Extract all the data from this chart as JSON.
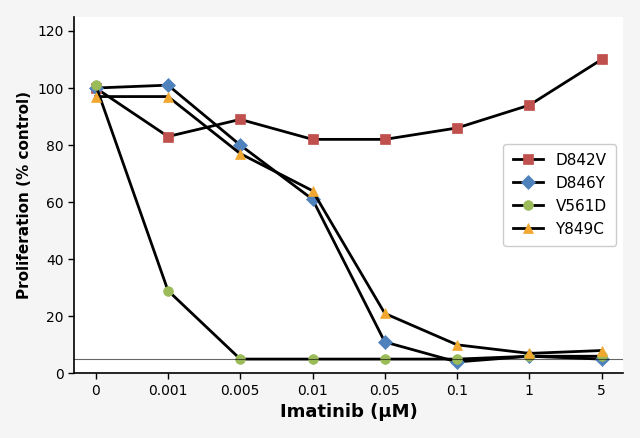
{
  "x_positions": [
    0,
    1,
    2,
    3,
    4,
    5,
    6,
    7
  ],
  "x_tick_labels": [
    "0",
    "0.001",
    "0.005",
    "0.01",
    "0.05",
    "0.1",
    "1",
    "5"
  ],
  "series": {
    "D842V": {
      "y": [
        100,
        83,
        89,
        82,
        82,
        86,
        94,
        110
      ],
      "color": "#c0504d",
      "marker": "s",
      "markersize": 7
    },
    "D846Y": {
      "y": [
        100,
        101,
        80,
        61,
        11,
        4,
        6,
        5
      ],
      "color": "#4f81bd",
      "marker": "D",
      "markersize": 7
    },
    "V561D": {
      "y": [
        101,
        29,
        5,
        5,
        5,
        5,
        6,
        6
      ],
      "color": "#9bbb59",
      "marker": "o",
      "markersize": 7
    },
    "Y849C": {
      "y": [
        97,
        97,
        77,
        64,
        21,
        10,
        7,
        8
      ],
      "color": "#f0a830",
      "marker": "^",
      "markersize": 7
    }
  },
  "xlabel": "Imatinib (μM)",
  "ylabel": "Proliferation (% control)",
  "ylim": [
    0,
    125
  ],
  "yticks": [
    0,
    20,
    40,
    60,
    80,
    100,
    120
  ],
  "background_color": "#f5f5f5",
  "plot_bg_color": "#ffffff",
  "legend_loc": "center right",
  "linewidth": 2.0,
  "line_color": "#000000"
}
